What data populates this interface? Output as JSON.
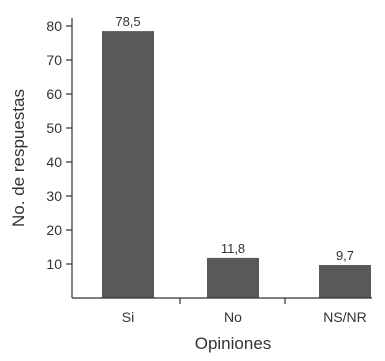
{
  "chart_data": {
    "type": "bar",
    "title": "",
    "xlabel": "Opiniones",
    "ylabel": "No. de respuestas",
    "categories": [
      "Si",
      "No",
      "NS/NR"
    ],
    "values": [
      78.5,
      11.8,
      9.7
    ],
    "value_labels": [
      "78,5",
      "11,8",
      "9,7"
    ],
    "ylim": [
      0,
      80
    ],
    "yticks": [
      10,
      20,
      30,
      40,
      50,
      60,
      70,
      80
    ],
    "ytick_labels": [
      "10",
      "20",
      "30",
      "40",
      "50",
      "60",
      "70",
      "80"
    ],
    "grid": false,
    "bar_color": "#595959",
    "axis_color": "#333333"
  }
}
